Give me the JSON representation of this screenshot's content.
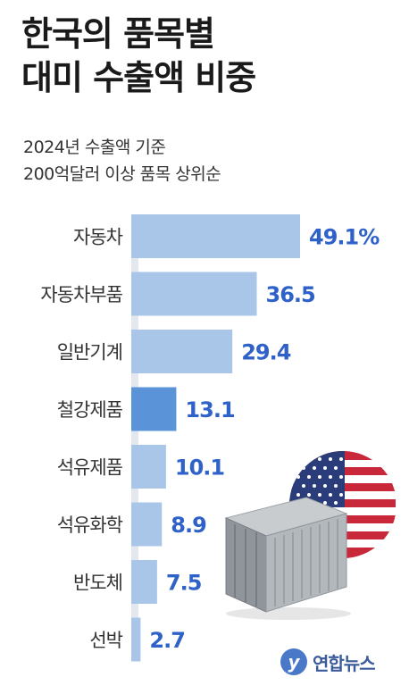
{
  "title": [
    "한국의 품목별",
    "대미 수출액 비중"
  ],
  "subtitle": [
    "2024년 수출액 기준",
    "200억달러 이상 품목 상위순"
  ],
  "chart_data": {
    "type": "bar",
    "orientation": "horizontal",
    "categories": [
      "자동차",
      "자동차부품",
      "일반기계",
      "철강제품",
      "석유제품",
      "석유화학",
      "반도체",
      "선박"
    ],
    "values": [
      49.1,
      36.5,
      29.4,
      13.1,
      10.1,
      8.9,
      7.5,
      2.7
    ],
    "value_labels": [
      "49.1%",
      "36.5",
      "29.4",
      "13.1",
      "10.1",
      "8.9",
      "7.5",
      "2.7"
    ],
    "highlight_index": 3,
    "colors": {
      "bar": "#a9c6e8",
      "bar_highlight": "#5b93d8",
      "value_text": "#2f62c9",
      "axis_strip": "#e3e7ee"
    }
  },
  "illustration": {
    "icons": [
      "us-flag-icon",
      "shipping-container-icon"
    ]
  },
  "logo": {
    "text": "연합뉴스",
    "mark": "y"
  }
}
